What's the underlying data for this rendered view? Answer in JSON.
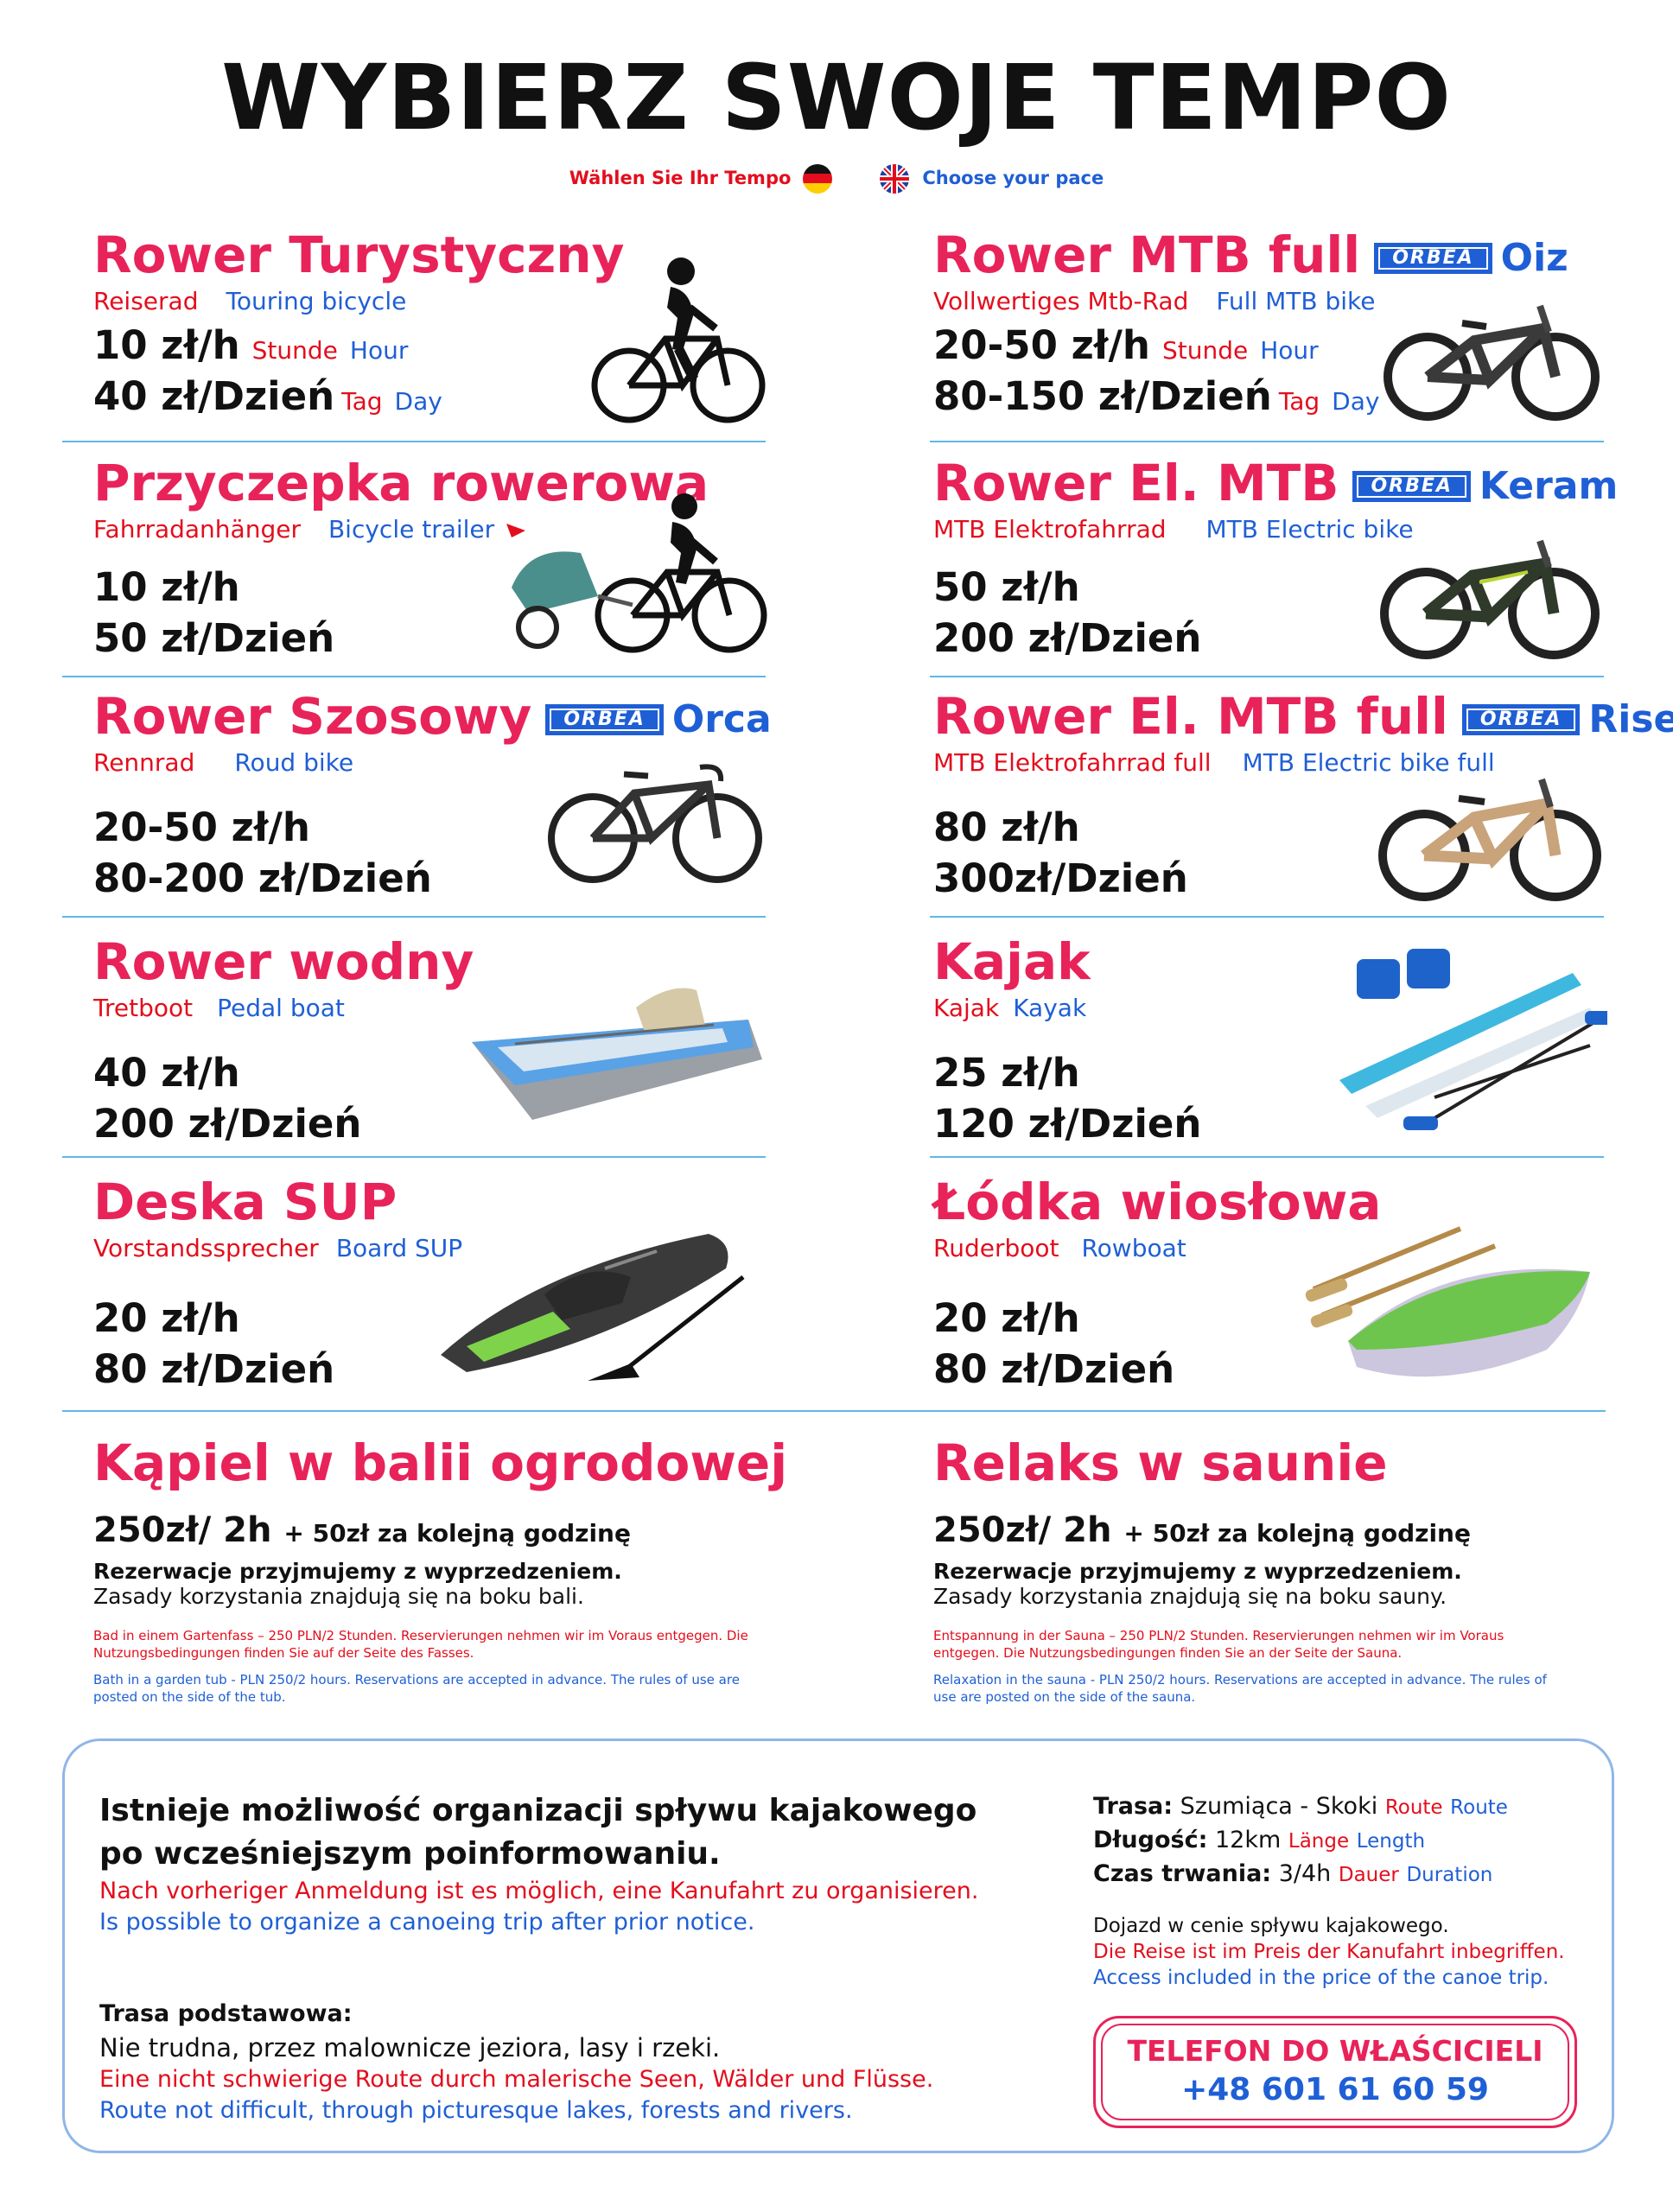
{
  "header": {
    "title": "WYBIERZ SWOJE TEMPO",
    "de": "Wählen Sie Ihr Tempo",
    "en": "Choose your pace"
  },
  "items": [
    {
      "title": "Rower Turystyczny",
      "de": "Reiserad",
      "en": "Touring bicycle",
      "brand": "",
      "model": "",
      "price_hour": "10 zł/h",
      "price_day": "40 zł/Dzień",
      "hour_de": "Stunde",
      "hour_en": "Hour",
      "day_de": "Tag",
      "day_en": "Day"
    },
    {
      "title": "Rower MTB full",
      "de": "Vollwertiges Mtb-Rad",
      "en": "Full MTB bike",
      "brand": "ORBEA",
      "model": "Oiz",
      "price_hour": "20-50 zł/h",
      "price_day": "80-150 zł/Dzień",
      "hour_de": "Stunde",
      "hour_en": "Hour",
      "day_de": "Tag",
      "day_en": "Day"
    },
    {
      "title": "Przyczepka rowerowa",
      "de": "Fahrradanhänger",
      "en": "Bicycle trailer",
      "price_hour": "10 zł/h",
      "price_day": "50 zł/Dzień"
    },
    {
      "title": "Rower El. MTB",
      "de": "MTB Elektrofahrrad",
      "en": "MTB Electric bike",
      "brand": "ORBEA",
      "model": "Keram",
      "price_hour": "50 zł/h",
      "price_day": "200 zł/Dzień"
    },
    {
      "title": "Rower Szosowy",
      "de": "Rennrad",
      "en": "Roud bike",
      "brand": "ORBEA",
      "model": "Orca",
      "price_hour": "20-50 zł/h",
      "price_day": "80-200 zł/Dzień"
    },
    {
      "title": "Rower El. MTB full",
      "de": "MTB Elektrofahrrad full",
      "en": "MTB Electric bike full",
      "brand": "ORBEA",
      "model": "Rise",
      "price_hour": "80 zł/h",
      "price_day": "300zł/Dzień"
    },
    {
      "title": "Rower wodny",
      "de": "Tretboot",
      "en": "Pedal boat",
      "price_hour": "40 zł/h",
      "price_day": "200 zł/Dzień"
    },
    {
      "title": "Kajak",
      "de": "Kajak",
      "en": "Kayak",
      "price_hour": "25 zł/h",
      "price_day": "120 zł/Dzień"
    },
    {
      "title": "Deska SUP",
      "de": "Vorstandssprecher",
      "en": "Board SUP",
      "price_hour": "20 zł/h",
      "price_day": "80 zł/Dzień"
    },
    {
      "title": "Łódka wiosłowa",
      "de": "Ruderboot",
      "en": "Rowboat",
      "price_hour": "20 zł/h",
      "price_day": "80 zł/Dzień"
    }
  ],
  "bath": {
    "title": "Kąpiel w balii ogrodowej",
    "price": "250zł/ 2h",
    "extra": "+ 50zł za kolejną godzinę",
    "reserve": "Rezerwacje przyjmujemy z wyprzedzeniem.",
    "rules": "Zasady korzystania znajdują się na boku bali.",
    "de": "Bad in einem Gartenfass – 250 PLN/2 Stunden. Reservierungen nehmen wir im Voraus entgegen. Die Nutzungsbedingungen finden Sie auf der Seite des Fasses.",
    "en": "Bath in a garden tub - PLN 250/2 hours. Reservations are accepted in advance. The rules of use are posted on the side of the tub."
  },
  "sauna": {
    "title": "Relaks w saunie",
    "price": "250zł/ 2h",
    "extra": "+ 50zł za kolejną godzinę",
    "reserve": "Rezerwacje przyjmujemy z wyprzedzeniem.",
    "rules": "Zasady korzystania znajdują się na boku sauny.",
    "de": "Entspannung in der Sauna – 250 PLN/2 Stunden. Reservierungen nehmen wir im Voraus entgegen. Die Nutzungsbedingungen finden Sie an der Seite der Sauna.",
    "en": "Relaxation in the sauna - PLN 250/2 hours. Reservations are accepted in advance. The rules of use are posted on the side of the sauna."
  },
  "kayak_trip": {
    "lead_1": "Istnieje możliwość organizacji spływu kajakowego",
    "lead_2": "po wcześniejszym poinformowaniu.",
    "lead_de": "Nach vorheriger Anmeldung ist es möglich, eine Kanufahrt zu organisieren.",
    "lead_en": "Is possible to organize a canoeing trip after prior notice.",
    "route_heading": "Trasa podstawowa:",
    "route_pl": "Nie trudna, przez malownicze jeziora, lasy i rzeki.",
    "route_de": "Eine nicht schwierige Route durch malerische Seen, Wälder und Flüsse.",
    "route_en": "Route not difficult, through picturesque lakes, forests and rivers.",
    "trasa_label": "Trasa:",
    "trasa_value": "Szumiąca - Skoki",
    "trasa_de": "Route",
    "trasa_en": "Route",
    "length_label": "Długość:",
    "length_value": "12km",
    "length_de": "Länge",
    "length_en": "Length",
    "duration_label": "Czas trwania:",
    "duration_value": "3/4h",
    "duration_de": "Dauer",
    "duration_en": "Duration",
    "access_pl": "Dojazd w cenie spływu kajakowego.",
    "access_de": "Die Reise ist im Preis der Kanufahrt inbegriffen.",
    "access_en": "Access included in the price of the canoe trip.",
    "phone_label": "TELEFON DO WŁAŚCICIELI",
    "phone_number": "+48 601 61 60 59"
  },
  "colors": {
    "accent_pink": "#e8235a",
    "german_red": "#e30e1d",
    "english_blue": "#1f5fd6",
    "divider": "#5fb8e6"
  }
}
